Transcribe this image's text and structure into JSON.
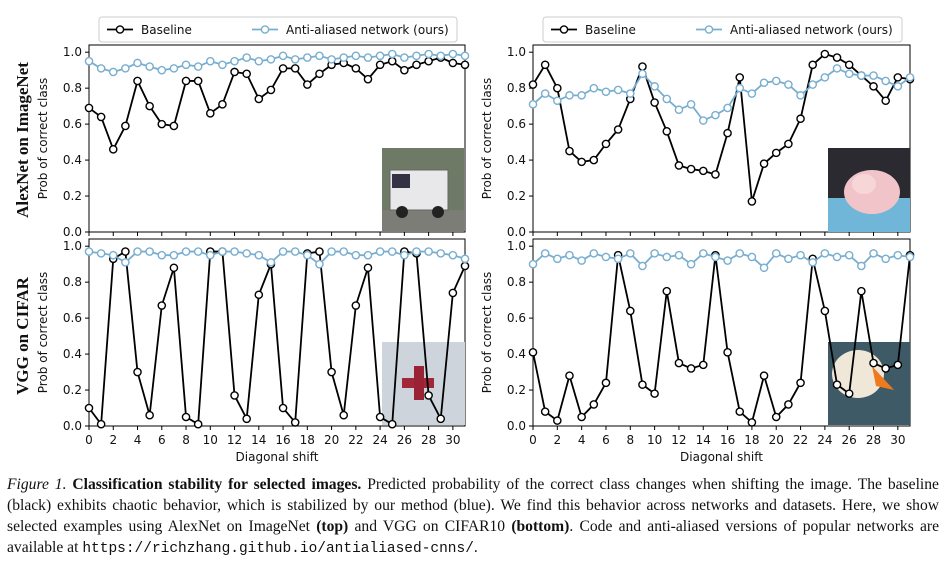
{
  "chart_data": [
    {
      "type": "line",
      "ylabel": "Prob of correct class",
      "x": [
        0,
        1,
        2,
        3,
        4,
        5,
        6,
        7,
        8,
        9,
        10,
        11,
        12,
        13,
        14,
        15,
        16,
        17,
        18,
        19,
        20,
        21,
        22,
        23,
        24,
        25,
        26,
        27,
        28,
        29,
        30,
        31
      ],
      "xlim": [
        0,
        31
      ],
      "ylim": [
        0,
        1.04
      ],
      "xticks": [
        0,
        2,
        4,
        6,
        8,
        10,
        12,
        14,
        16,
        18,
        20,
        22,
        24,
        26,
        28,
        30
      ],
      "show_xtick_labels": false,
      "yticks": [
        {
          "value": 0,
          "label": "0.0"
        },
        {
          "value": 0.2,
          "label": "0.2"
        },
        {
          "value": 0.4,
          "label": "0.4"
        },
        {
          "value": 0.6,
          "label": "0.6"
        },
        {
          "value": 0.8,
          "label": "0.8"
        },
        {
          "value": 1,
          "label": "1.0"
        }
      ],
      "legend": "above",
      "series": [
        {
          "name": "Baseline",
          "color": "#000000",
          "values": [
            0.69,
            0.64,
            0.46,
            0.59,
            0.84,
            0.7,
            0.6,
            0.59,
            0.84,
            0.84,
            0.66,
            0.71,
            0.89,
            0.88,
            0.74,
            0.79,
            0.91,
            0.91,
            0.82,
            0.88,
            0.93,
            0.94,
            0.91,
            0.85,
            0.93,
            0.95,
            0.9,
            0.93,
            0.95,
            0.97,
            0.94,
            0.93
          ]
        },
        {
          "name": "Anti-aliased network (ours)",
          "color": "#78aed0",
          "values": [
            0.95,
            0.91,
            0.89,
            0.91,
            0.94,
            0.92,
            0.9,
            0.91,
            0.93,
            0.92,
            0.95,
            0.93,
            0.95,
            0.97,
            0.95,
            0.96,
            0.98,
            0.96,
            0.97,
            0.98,
            0.96,
            0.97,
            0.98,
            0.97,
            0.98,
            0.99,
            0.97,
            0.98,
            0.99,
            0.98,
            0.99,
            0.98
          ]
        }
      ]
    },
    {
      "type": "line",
      "ylabel": "Prob of correct class",
      "x": [
        0,
        1,
        2,
        3,
        4,
        5,
        6,
        7,
        8,
        9,
        10,
        11,
        12,
        13,
        14,
        15,
        16,
        17,
        18,
        19,
        20,
        21,
        22,
        23,
        24,
        25,
        26,
        27,
        28,
        29,
        30,
        31
      ],
      "xlim": [
        0,
        31
      ],
      "ylim": [
        0,
        1.04
      ],
      "xticks": [
        0,
        2,
        4,
        6,
        8,
        10,
        12,
        14,
        16,
        18,
        20,
        22,
        24,
        26,
        28,
        30
      ],
      "show_xtick_labels": false,
      "yticks": [
        {
          "value": 0,
          "label": "0.0"
        },
        {
          "value": 0.2,
          "label": "0.2"
        },
        {
          "value": 0.4,
          "label": "0.4"
        },
        {
          "value": 0.6,
          "label": "0.6"
        },
        {
          "value": 0.8,
          "label": "0.8"
        },
        {
          "value": 1,
          "label": "1.0"
        }
      ],
      "legend": "above",
      "series": [
        {
          "name": "Baseline",
          "color": "#000000",
          "values": [
            0.82,
            0.93,
            0.8,
            0.45,
            0.39,
            0.4,
            0.49,
            0.57,
            0.74,
            0.92,
            0.72,
            0.56,
            0.37,
            0.35,
            0.34,
            0.32,
            0.55,
            0.86,
            0.17,
            0.38,
            0.44,
            0.49,
            0.63,
            0.93,
            0.99,
            0.97,
            0.93,
            0.87,
            0.81,
            0.73,
            0.86,
            0.85
          ]
        },
        {
          "name": "Anti-aliased network (ours)",
          "color": "#78aed0",
          "values": [
            0.71,
            0.77,
            0.73,
            0.76,
            0.76,
            0.8,
            0.78,
            0.79,
            0.77,
            0.88,
            0.81,
            0.74,
            0.68,
            0.71,
            0.62,
            0.65,
            0.69,
            0.8,
            0.77,
            0.83,
            0.84,
            0.82,
            0.76,
            0.82,
            0.86,
            0.91,
            0.88,
            0.87,
            0.87,
            0.84,
            0.81,
            0.86
          ]
        }
      ]
    },
    {
      "type": "line",
      "ylabel": "Prob of correct class",
      "xlabel": "Diagonal shift",
      "x": [
        0,
        1,
        2,
        3,
        4,
        5,
        6,
        7,
        8,
        9,
        10,
        11,
        12,
        13,
        14,
        15,
        16,
        17,
        18,
        19,
        20,
        21,
        22,
        23,
        24,
        25,
        26,
        27,
        28,
        29,
        30,
        31
      ],
      "xlim": [
        0,
        31
      ],
      "ylim": [
        0,
        1.04
      ],
      "xticks": [
        0,
        2,
        4,
        6,
        8,
        10,
        12,
        14,
        16,
        18,
        20,
        22,
        24,
        26,
        28,
        30
      ],
      "show_xtick_labels": true,
      "yticks": [
        {
          "value": 0,
          "label": "0.0"
        },
        {
          "value": 0.2,
          "label": "0.2"
        },
        {
          "value": 0.4,
          "label": "0.4"
        },
        {
          "value": 0.6,
          "label": "0.6"
        },
        {
          "value": 0.8,
          "label": "0.8"
        },
        {
          "value": 1,
          "label": "1.0"
        }
      ],
      "legend": "none",
      "series": [
        {
          "name": "Baseline",
          "color": "#000000",
          "values": [
            0.1,
            0.01,
            0.93,
            0.97,
            0.3,
            0.06,
            0.67,
            0.88,
            0.05,
            0.01,
            0.97,
            0.97,
            0.17,
            0.04,
            0.73,
            0.9,
            0.1,
            0.02,
            0.96,
            0.97,
            0.3,
            0.06,
            0.67,
            0.88,
            0.05,
            0.01,
            0.97,
            0.96,
            0.17,
            0.04,
            0.74,
            0.89
          ]
        },
        {
          "name": "Anti-aliased network (ours)",
          "color": "#78aed0",
          "values": [
            0.97,
            0.96,
            0.95,
            0.91,
            0.97,
            0.97,
            0.95,
            0.95,
            0.97,
            0.97,
            0.95,
            0.97,
            0.97,
            0.96,
            0.95,
            0.91,
            0.97,
            0.97,
            0.95,
            0.9,
            0.97,
            0.97,
            0.95,
            0.95,
            0.97,
            0.97,
            0.95,
            0.97,
            0.97,
            0.96,
            0.95,
            0.93
          ]
        }
      ]
    },
    {
      "type": "line",
      "ylabel": "Prob of correct class",
      "xlabel": "Diagonal shift",
      "x": [
        0,
        1,
        2,
        3,
        4,
        5,
        6,
        7,
        8,
        9,
        10,
        11,
        12,
        13,
        14,
        15,
        16,
        17,
        18,
        19,
        20,
        21,
        22,
        23,
        24,
        25,
        26,
        27,
        28,
        29,
        30,
        31
      ],
      "xlim": [
        0,
        31
      ],
      "ylim": [
        0,
        1.04
      ],
      "xticks": [
        0,
        2,
        4,
        6,
        8,
        10,
        12,
        14,
        16,
        18,
        20,
        22,
        24,
        26,
        28,
        30
      ],
      "show_xtick_labels": true,
      "yticks": [
        {
          "value": 0,
          "label": "0.0"
        },
        {
          "value": 0.2,
          "label": "0.2"
        },
        {
          "value": 0.4,
          "label": "0.4"
        },
        {
          "value": 0.6,
          "label": "0.6"
        },
        {
          "value": 0.8,
          "label": "0.8"
        },
        {
          "value": 1,
          "label": "1.0"
        }
      ],
      "legend": "none",
      "series": [
        {
          "name": "Baseline",
          "color": "#000000",
          "values": [
            0.41,
            0.08,
            0.03,
            0.28,
            0.05,
            0.12,
            0.24,
            0.95,
            0.64,
            0.23,
            0.18,
            0.75,
            0.35,
            0.32,
            0.34,
            0.95,
            0.41,
            0.08,
            0.02,
            0.28,
            0.05,
            0.12,
            0.24,
            0.93,
            0.64,
            0.23,
            0.18,
            0.75,
            0.35,
            0.32,
            0.34,
            0.95
          ]
        },
        {
          "name": "Anti-aliased network (ours)",
          "color": "#78aed0",
          "values": [
            0.9,
            0.96,
            0.93,
            0.95,
            0.92,
            0.96,
            0.94,
            0.93,
            0.96,
            0.89,
            0.96,
            0.94,
            0.95,
            0.9,
            0.96,
            0.94,
            0.92,
            0.96,
            0.94,
            0.88,
            0.96,
            0.93,
            0.95,
            0.91,
            0.96,
            0.94,
            0.95,
            0.89,
            0.96,
            0.93,
            0.95,
            0.94
          ]
        }
      ]
    }
  ],
  "row_labels": [
    "AlexNet on ImageNet",
    "VGG on CIFAR"
  ],
  "caption": {
    "label": "Figure 1.",
    "title": "Classification stability for selected images.",
    "text1": "Predicted probability of the correct class changes when shifting the image. The baseline (black) exhibits chaotic behavior, which is stabilized by our method (blue). We find this behavior across networks and datasets. Here, we show selected examples using AlexNet on ImageNet",
    "top": "(top)",
    "text2": "and VGG on CIFAR10",
    "bottom": "(bottom)",
    "text3": ". Code and anti-aliased versions of popular networks are available at",
    "url": "https://richzhang.github.io/antialiased-cnns/",
    "end": "."
  }
}
